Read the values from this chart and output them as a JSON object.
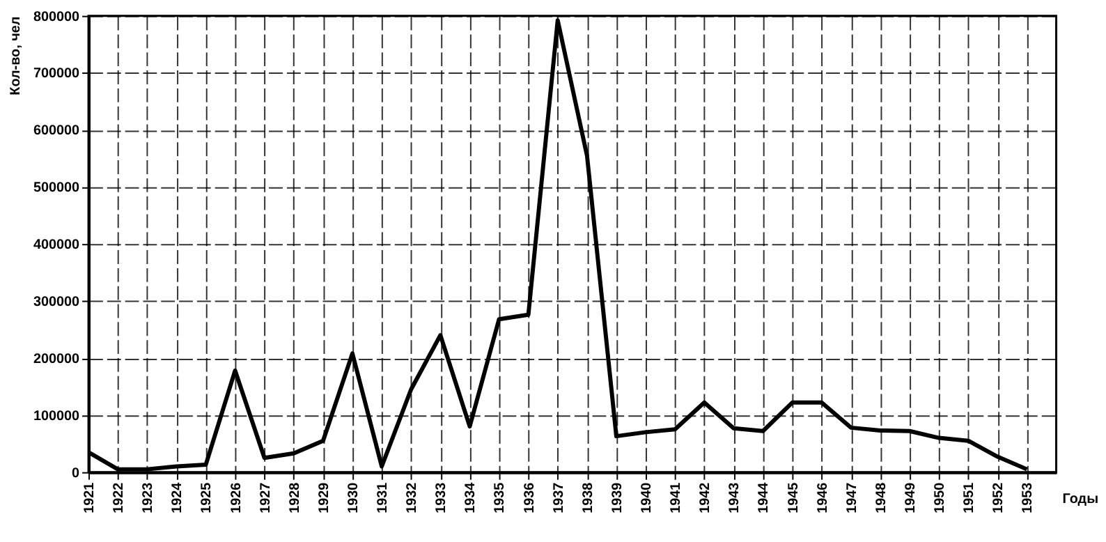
{
  "chart_data": {
    "type": "line",
    "xlabel": "Годы",
    "ylabel": "Кол-во, чел",
    "x": [
      1921,
      1922,
      1923,
      1924,
      1925,
      1926,
      1927,
      1928,
      1929,
      1930,
      1931,
      1932,
      1933,
      1934,
      1935,
      1936,
      1937,
      1938,
      1939,
      1940,
      1941,
      1942,
      1943,
      1944,
      1945,
      1946,
      1947,
      1948,
      1949,
      1950,
      1951,
      1952,
      1953
    ],
    "series": [
      {
        "color": "#000000",
        "values": [
          35000,
          5000,
          5000,
          10000,
          13000,
          178000,
          25000,
          33000,
          55000,
          208000,
          10000,
          145000,
          240000,
          80000,
          268000,
          276000,
          792000,
          555000,
          63000,
          70000,
          75000,
          122000,
          77000,
          72000,
          122000,
          122000,
          78000,
          73000,
          72000,
          60000,
          55000,
          27000,
          5000
        ]
      }
    ],
    "xlim": [
      1921,
      1954
    ],
    "xticks": [
      1921,
      1922,
      1923,
      1924,
      1925,
      1926,
      1927,
      1928,
      1929,
      1930,
      1931,
      1932,
      1933,
      1934,
      1935,
      1936,
      1937,
      1938,
      1939,
      1940,
      1941,
      1942,
      1943,
      1944,
      1945,
      1946,
      1947,
      1948,
      1949,
      1950,
      1951,
      1952,
      1953
    ],
    "ylim": [
      0,
      800000
    ],
    "yticks": [
      0,
      100000,
      200000,
      300000,
      400000,
      500000,
      600000,
      700000,
      800000
    ],
    "grid": true,
    "marker": "none",
    "line_style": "solid"
  }
}
